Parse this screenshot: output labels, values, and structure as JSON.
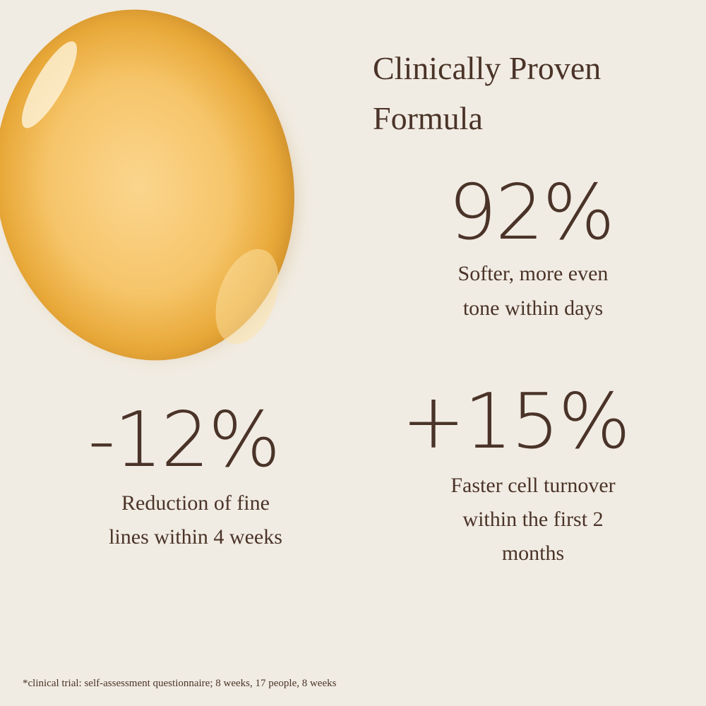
{
  "title": [
    "Clinically Proven",
    "Formula"
  ],
  "stats": [
    {
      "figure": "92%",
      "description": [
        "Softer, more even",
        "tone within days"
      ]
    },
    {
      "figure": "-12%",
      "description": [
        "Reduction of fine",
        "lines within 4 weeks"
      ]
    },
    {
      "figure": "+15%",
      "description": [
        "Faster cell turnover",
        "within the first 2",
        "months"
      ]
    }
  ],
  "footnote": "*clinical trial: self-assessment questionnaire; 8 weeks, 17 people, 8 weeks"
}
